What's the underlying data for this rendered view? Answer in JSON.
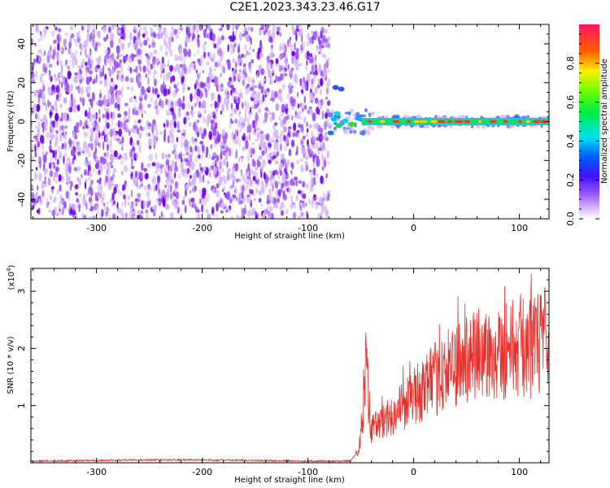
{
  "title": "C2E1.2023.343.23.46.G17",
  "colors": {
    "dot_dark": "#6a00f0",
    "dot_mid": "#9a55f5",
    "dot_light": "#d4b6fb",
    "snr_line": "#e8302c",
    "axis": "#000000"
  },
  "chart_data": [
    {
      "type": "heatmap",
      "xlabel": "Height of straight line (km)",
      "ylabel": "Frequency (Hz)",
      "xlim": [
        -362,
        128
      ],
      "ylim": [
        -50,
        50
      ],
      "x_ticks": [
        -300,
        -200,
        -100,
        0,
        100
      ],
      "y_ticks": [
        -40,
        -20,
        0,
        20,
        40
      ],
      "noise_region_x": [
        -362,
        -80
      ],
      "signal_track": {
        "x_start": -80,
        "x_end": 128,
        "frequency_center": 0
      },
      "colorbar": {
        "label": "Normalized spectral amplitude",
        "range": [
          0.0,
          1.0
        ],
        "ticks": [
          "0.0",
          "0.2",
          "0.4",
          "0.6",
          "0.8"
        ]
      }
    },
    {
      "type": "line",
      "xlabel": "Height of straight line (km)",
      "ylabel": "SNR (10 * v/v)",
      "exponent_label": "(x10",
      "exponent_power": "4",
      "exponent_close": ")",
      "xlim": [
        -362,
        128
      ],
      "ylim": [
        0,
        3.4
      ],
      "x_ticks": [
        -300,
        -200,
        -100,
        0,
        100
      ],
      "y_ticks": [
        1,
        2,
        3
      ],
      "series": [
        {
          "x": [
            -362,
            -300,
            -250,
            -200,
            -150,
            -100,
            -60,
            -52,
            -48,
            -46,
            -40,
            -30,
            -20,
            -10,
            0,
            10,
            20,
            30,
            40,
            50,
            60,
            70,
            80,
            90,
            100,
            110,
            120,
            128
          ],
          "values": [
            0.03,
            0.04,
            0.05,
            0.05,
            0.04,
            0.03,
            0.03,
            0.2,
            0.9,
            1.9,
            0.6,
            0.7,
            0.85,
            1.0,
            1.15,
            1.3,
            1.45,
            1.6,
            1.7,
            1.8,
            1.85,
            1.9,
            1.95,
            2.0,
            2.05,
            2.0,
            2.1,
            2.1
          ]
        }
      ]
    }
  ]
}
